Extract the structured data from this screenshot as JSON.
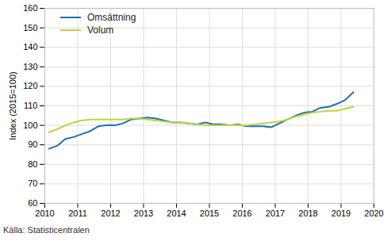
{
  "chart_data": {
    "type": "line",
    "y_label": "Index (2015=100)",
    "source": "Källa: Statisticentralen",
    "x": [
      2010.125,
      2010.375,
      2010.625,
      2010.875,
      2011.125,
      2011.375,
      2011.625,
      2011.875,
      2012.125,
      2012.375,
      2012.625,
      2012.875,
      2013.125,
      2013.375,
      2013.625,
      2013.875,
      2014.125,
      2014.375,
      2014.625,
      2014.875,
      2015.125,
      2015.375,
      2015.625,
      2015.875,
      2016.125,
      2016.375,
      2016.625,
      2016.875,
      2017.125,
      2017.375,
      2017.625,
      2017.875,
      2018.125,
      2018.375,
      2018.625,
      2018.875,
      2019.125,
      2019.375
    ],
    "series": [
      {
        "name": "Omsättning",
        "color": "#1f6fb2",
        "values": [
          88,
          89.5,
          93,
          94,
          95.5,
          97,
          99.5,
          100,
          100,
          101,
          103,
          103.5,
          104,
          103.5,
          102.5,
          101.5,
          101.5,
          101,
          100.5,
          101.5,
          100.5,
          100.5,
          100,
          100.5,
          99.5,
          99.5,
          99.5,
          99,
          101,
          103,
          105,
          106.5,
          107,
          109,
          109.5,
          111,
          113,
          117
        ]
      },
      {
        "name": "Volum",
        "color": "#bcd63a",
        "values": [
          96.5,
          98,
          100,
          101.5,
          102.5,
          103,
          103,
          103,
          103,
          103,
          103.5,
          103.5,
          103,
          102.5,
          102,
          101.5,
          101.5,
          101,
          100.5,
          100,
          100,
          100,
          100,
          100,
          100,
          100.5,
          101,
          101.5,
          102,
          103,
          104.5,
          105.5,
          106.5,
          107,
          107.5,
          107.5,
          108.5,
          109.5
        ]
      }
    ],
    "xlim": [
      2010,
      2020
    ],
    "xticks": [
      2010,
      2011,
      2012,
      2013,
      2014,
      2015,
      2016,
      2017,
      2018,
      2019,
      2020
    ],
    "ylim": [
      60,
      160
    ],
    "yticks": [
      60,
      70,
      80,
      90,
      100,
      110,
      120,
      130,
      140,
      150,
      160
    ],
    "grid": true,
    "legend": "top-left"
  }
}
